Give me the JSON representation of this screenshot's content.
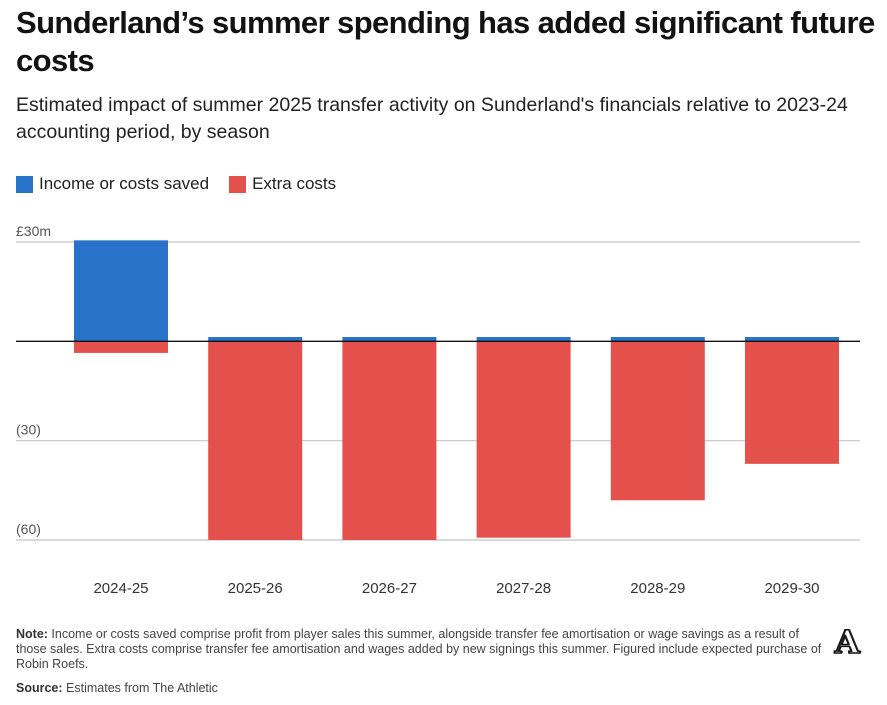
{
  "header": {
    "title": "Sunderland’s summer spending has added significant future costs",
    "subtitle": "Estimated impact of summer 2025 transfer activity on Sunderland's financials relative to 2023-24 accounting period, by season"
  },
  "footer": {
    "note_label": "Note:",
    "note_text": " Income or costs saved comprise profit from player sales this summer, alongside transfer fee amortisation or wage savings as a result of those sales. Extra costs comprise transfer fee amortisation and wages added by new signings this summer. Figured include expected purchase of Robin Roefs.",
    "source_label": "Source:",
    "source_text": " Estimates from The Athletic",
    "logo_letter": "A"
  },
  "colors": {
    "income": "#2872c9",
    "extra": "#e4514d",
    "grid": "#c4c4c4",
    "zero": "#121212"
  },
  "chart_data": {
    "type": "bar",
    "stacked": "diverging",
    "title": "Sunderland’s summer spending has added significant future costs",
    "xlabel": "",
    "ylabel": "",
    "ylim": [
      -60,
      30
    ],
    "grid": true,
    "legend_position": "top-left",
    "categories": [
      "2024-25",
      "2025-26",
      "2026-27",
      "2027-28",
      "2028-29",
      "2029-30"
    ],
    "y_ticks": [
      {
        "value": 30,
        "label": "£30m"
      },
      {
        "value": 0,
        "label": ""
      },
      {
        "value": -30,
        "label": "(30)"
      },
      {
        "value": -60,
        "label": "(60)"
      }
    ],
    "series": [
      {
        "name": "Income or costs saved",
        "color": "#2872c9",
        "values": [
          30.5,
          1.3,
          1.3,
          1.3,
          1.3,
          1.3
        ]
      },
      {
        "name": "Extra costs",
        "color": "#e4514d",
        "values": [
          -3.5,
          -60,
          -60,
          -59.3,
          -48,
          -37
        ]
      }
    ]
  }
}
